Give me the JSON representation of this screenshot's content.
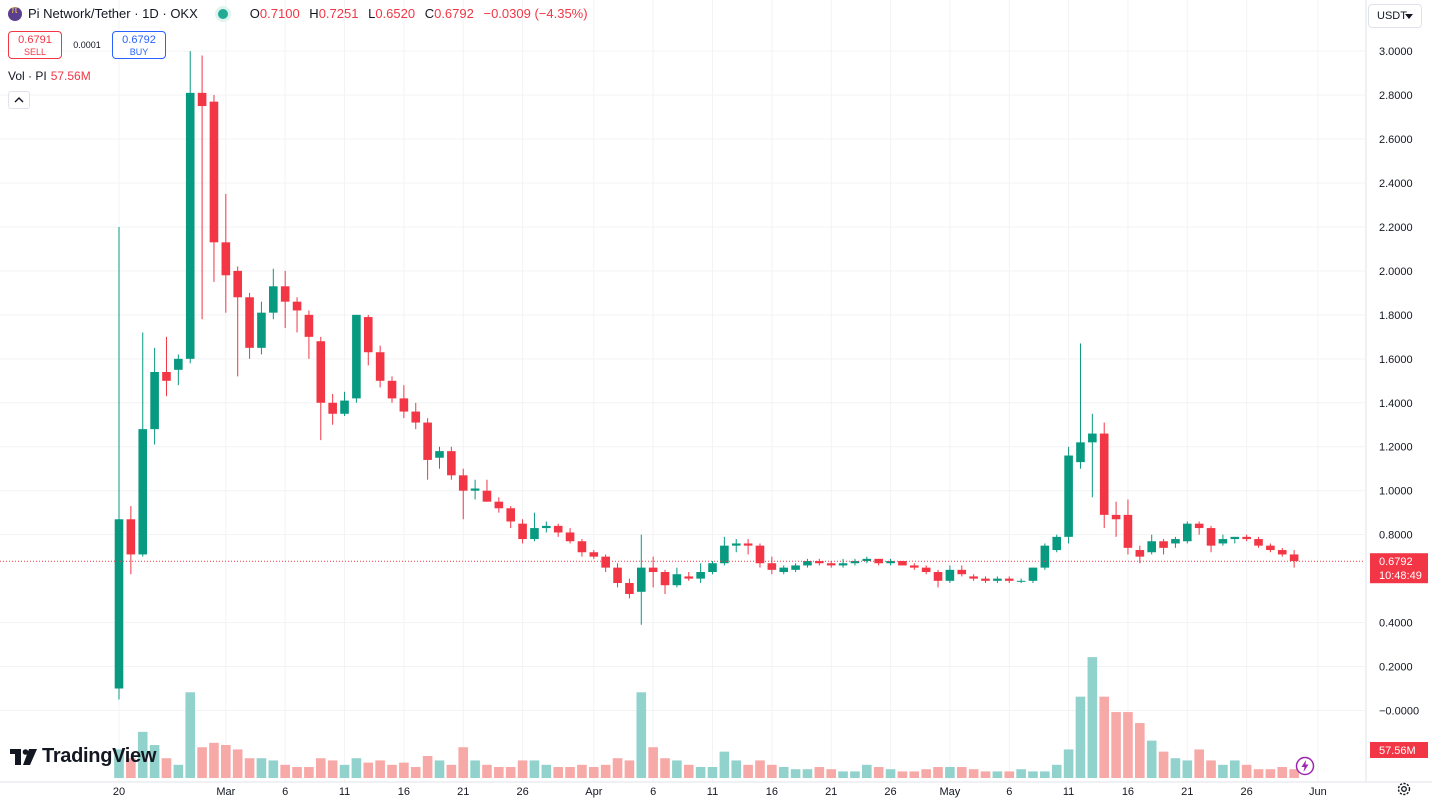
{
  "header": {
    "title": "Pi Network/Tether · 1D · OKX",
    "ohlc": {
      "o_label": "O",
      "o": "0.7100",
      "h_label": "H",
      "h": "0.7251",
      "l_label": "L",
      "l": "0.6520",
      "c_label": "C",
      "c": "0.6792",
      "change": "−0.0309 (−4.35%)"
    },
    "sell": {
      "price": "0.6791",
      "label": "SELL"
    },
    "spread": "0.0001",
    "buy": {
      "price": "0.6792",
      "label": "BUY"
    },
    "volume": {
      "label": "Vol · PI",
      "value": "57.56M"
    },
    "currency": "USDT",
    "brand": "TradingView"
  },
  "colors": {
    "up": "#089981",
    "down": "#f23645",
    "vol_up": "#92d2cc",
    "vol_down": "#f7a9a7",
    "grid": "#f2f3f5"
  },
  "icons": [
    "pi-network-logo-icon",
    "market-status-icon",
    "collapse-chevron-icon",
    "dropdown-icon",
    "tradingview-logo-icon",
    "lightning-icon",
    "settings-gear-icon"
  ],
  "chart_data": {
    "type": "candlestick",
    "title": "Pi Network/Tether · 1D · OKX",
    "y_ticks": [
      "3.0000",
      "2.8000",
      "2.6000",
      "2.4000",
      "2.2000",
      "2.0000",
      "1.8000",
      "1.6000",
      "1.4000",
      "1.2000",
      "1.0000",
      "0.8000",
      "0.6792",
      "0.4000",
      "0.2000",
      "−0.0000"
    ],
    "x_ticks": [
      {
        "label": "20",
        "date": "2025-02-20"
      },
      {
        "label": "Mar",
        "date": "2025-03-01"
      },
      {
        "label": "6",
        "date": "2025-03-06"
      },
      {
        "label": "11",
        "date": "2025-03-11"
      },
      {
        "label": "16",
        "date": "2025-03-16"
      },
      {
        "label": "21",
        "date": "2025-03-21"
      },
      {
        "label": "26",
        "date": "2025-03-26"
      },
      {
        "label": "Apr",
        "date": "2025-04-01"
      },
      {
        "label": "6",
        "date": "2025-04-06"
      },
      {
        "label": "11",
        "date": "2025-04-11"
      },
      {
        "label": "16",
        "date": "2025-04-16"
      },
      {
        "label": "21",
        "date": "2025-04-21"
      },
      {
        "label": "26",
        "date": "2025-04-26"
      },
      {
        "label": "May",
        "date": "2025-05-01"
      },
      {
        "label": "6",
        "date": "2025-05-06"
      },
      {
        "label": "11",
        "date": "2025-05-11"
      },
      {
        "label": "16",
        "date": "2025-05-16"
      },
      {
        "label": "21",
        "date": "2025-05-21"
      },
      {
        "label": "26",
        "date": "2025-05-26"
      },
      {
        "label": "Jun",
        "date": "2025-06-01"
      }
    ],
    "last_price": {
      "value": 0.6792,
      "label": "0.6792",
      "countdown": "10:48:49"
    },
    "last_volume_label": "57.56M",
    "start_date": "2025-02-20",
    "candles": [
      [
        0.1,
        2.2,
        0.05,
        0.87
      ],
      [
        0.87,
        0.93,
        0.62,
        0.71
      ],
      [
        0.71,
        1.72,
        0.7,
        1.28
      ],
      [
        1.28,
        1.65,
        1.21,
        1.54
      ],
      [
        1.54,
        1.7,
        1.43,
        1.5
      ],
      [
        1.55,
        1.62,
        1.48,
        1.6
      ],
      [
        1.6,
        3.0,
        1.58,
        2.81
      ],
      [
        2.81,
        2.98,
        1.78,
        2.75
      ],
      [
        2.77,
        2.8,
        1.95,
        2.13
      ],
      [
        2.13,
        2.35,
        1.81,
        1.98
      ],
      [
        2.0,
        2.02,
        1.52,
        1.88
      ],
      [
        1.88,
        1.9,
        1.6,
        1.65
      ],
      [
        1.65,
        1.86,
        1.62,
        1.81
      ],
      [
        1.81,
        2.01,
        1.78,
        1.93
      ],
      [
        1.93,
        2.0,
        1.74,
        1.86
      ],
      [
        1.86,
        1.88,
        1.72,
        1.82
      ],
      [
        1.8,
        1.82,
        1.6,
        1.7
      ],
      [
        1.68,
        1.7,
        1.23,
        1.4
      ],
      [
        1.4,
        1.44,
        1.3,
        1.35
      ],
      [
        1.35,
        1.45,
        1.34,
        1.41
      ],
      [
        1.42,
        1.8,
        1.4,
        1.8
      ],
      [
        1.79,
        1.8,
        1.57,
        1.63
      ],
      [
        1.63,
        1.66,
        1.47,
        1.5
      ],
      [
        1.5,
        1.52,
        1.4,
        1.42
      ],
      [
        1.42,
        1.48,
        1.33,
        1.36
      ],
      [
        1.36,
        1.4,
        1.28,
        1.31
      ],
      [
        1.31,
        1.33,
        1.05,
        1.14
      ],
      [
        1.15,
        1.2,
        1.1,
        1.18
      ],
      [
        1.18,
        1.2,
        1.05,
        1.07
      ],
      [
        1.07,
        1.1,
        0.87,
        1.0
      ],
      [
        1.0,
        1.05,
        0.96,
        1.01
      ],
      [
        1.0,
        1.05,
        0.95,
        0.95
      ],
      [
        0.95,
        0.97,
        0.9,
        0.92
      ],
      [
        0.92,
        0.93,
        0.83,
        0.86
      ],
      [
        0.85,
        0.87,
        0.76,
        0.78
      ],
      [
        0.78,
        0.9,
        0.77,
        0.83
      ],
      [
        0.83,
        0.86,
        0.81,
        0.84
      ],
      [
        0.84,
        0.85,
        0.79,
        0.81
      ],
      [
        0.81,
        0.83,
        0.76,
        0.77
      ],
      [
        0.77,
        0.78,
        0.7,
        0.72
      ],
      [
        0.72,
        0.73,
        0.69,
        0.7
      ],
      [
        0.7,
        0.71,
        0.63,
        0.65
      ],
      [
        0.65,
        0.67,
        0.56,
        0.58
      ],
      [
        0.58,
        0.6,
        0.51,
        0.53
      ],
      [
        0.54,
        0.8,
        0.39,
        0.65
      ],
      [
        0.65,
        0.7,
        0.56,
        0.63
      ],
      [
        0.63,
        0.64,
        0.53,
        0.57
      ],
      [
        0.57,
        0.65,
        0.56,
        0.62
      ],
      [
        0.61,
        0.63,
        0.59,
        0.6
      ],
      [
        0.6,
        0.67,
        0.58,
        0.63
      ],
      [
        0.63,
        0.68,
        0.62,
        0.67
      ],
      [
        0.67,
        0.79,
        0.66,
        0.75
      ],
      [
        0.75,
        0.78,
        0.72,
        0.76
      ],
      [
        0.76,
        0.78,
        0.71,
        0.75
      ],
      [
        0.75,
        0.76,
        0.65,
        0.67
      ],
      [
        0.67,
        0.7,
        0.62,
        0.64
      ],
      [
        0.63,
        0.66,
        0.62,
        0.65
      ],
      [
        0.64,
        0.67,
        0.63,
        0.66
      ],
      [
        0.66,
        0.69,
        0.65,
        0.68
      ],
      [
        0.68,
        0.69,
        0.66,
        0.67
      ],
      [
        0.67,
        0.68,
        0.65,
        0.66
      ],
      [
        0.66,
        0.69,
        0.65,
        0.67
      ],
      [
        0.67,
        0.69,
        0.66,
        0.68
      ],
      [
        0.68,
        0.7,
        0.67,
        0.69
      ],
      [
        0.69,
        0.69,
        0.66,
        0.67
      ],
      [
        0.67,
        0.69,
        0.66,
        0.68
      ],
      [
        0.68,
        0.68,
        0.66,
        0.66
      ],
      [
        0.66,
        0.67,
        0.64,
        0.65
      ],
      [
        0.65,
        0.66,
        0.62,
        0.63
      ],
      [
        0.63,
        0.64,
        0.56,
        0.59
      ],
      [
        0.59,
        0.66,
        0.58,
        0.64
      ],
      [
        0.64,
        0.66,
        0.61,
        0.62
      ],
      [
        0.61,
        0.62,
        0.59,
        0.6
      ],
      [
        0.6,
        0.61,
        0.58,
        0.59
      ],
      [
        0.59,
        0.61,
        0.58,
        0.6
      ],
      [
        0.6,
        0.61,
        0.58,
        0.59
      ],
      [
        0.59,
        0.6,
        0.58,
        0.59
      ],
      [
        0.59,
        0.65,
        0.58,
        0.65
      ],
      [
        0.65,
        0.76,
        0.64,
        0.75
      ],
      [
        0.73,
        0.8,
        0.72,
        0.79
      ],
      [
        0.79,
        1.2,
        0.76,
        1.16
      ],
      [
        1.13,
        1.67,
        1.1,
        1.22
      ],
      [
        1.22,
        1.35,
        0.97,
        1.26
      ],
      [
        1.26,
        1.31,
        0.83,
        0.89
      ],
      [
        0.89,
        0.95,
        0.79,
        0.87
      ],
      [
        0.89,
        0.96,
        0.71,
        0.74
      ],
      [
        0.73,
        0.75,
        0.67,
        0.7
      ],
      [
        0.72,
        0.8,
        0.71,
        0.77
      ],
      [
        0.77,
        0.78,
        0.71,
        0.74
      ],
      [
        0.76,
        0.79,
        0.74,
        0.78
      ],
      [
        0.77,
        0.86,
        0.76,
        0.85
      ],
      [
        0.85,
        0.86,
        0.8,
        0.83
      ],
      [
        0.83,
        0.84,
        0.72,
        0.75
      ],
      [
        0.76,
        0.8,
        0.75,
        0.78
      ],
      [
        0.78,
        0.79,
        0.76,
        0.79
      ],
      [
        0.79,
        0.8,
        0.77,
        0.78
      ],
      [
        0.78,
        0.79,
        0.74,
        0.75
      ],
      [
        0.75,
        0.76,
        0.72,
        0.73
      ],
      [
        0.73,
        0.74,
        0.7,
        0.71
      ],
      [
        0.71,
        0.73,
        0.65,
        0.68
      ]
    ],
    "volumes_in_axis_units": [
      0.13,
      0.09,
      0.21,
      0.15,
      0.09,
      0.06,
      0.39,
      0.14,
      0.16,
      0.15,
      0.13,
      0.09,
      0.09,
      0.08,
      0.06,
      0.05,
      0.05,
      0.09,
      0.08,
      0.06,
      0.09,
      0.07,
      0.08,
      0.06,
      0.07,
      0.05,
      0.1,
      0.08,
      0.06,
      0.14,
      0.08,
      0.06,
      0.05,
      0.05,
      0.08,
      0.08,
      0.06,
      0.05,
      0.05,
      0.06,
      0.05,
      0.06,
      0.09,
      0.08,
      0.39,
      0.14,
      0.09,
      0.08,
      0.06,
      0.05,
      0.05,
      0.12,
      0.08,
      0.06,
      0.08,
      0.06,
      0.05,
      0.04,
      0.04,
      0.05,
      0.04,
      0.03,
      0.03,
      0.06,
      0.05,
      0.04,
      0.03,
      0.03,
      0.04,
      0.05,
      0.05,
      0.05,
      0.04,
      0.03,
      0.03,
      0.03,
      0.04,
      0.03,
      0.03,
      0.06,
      0.13,
      0.37,
      0.55,
      0.37,
      0.3,
      0.3,
      0.25,
      0.17,
      0.12,
      0.09,
      0.08,
      0.13,
      0.08,
      0.06,
      0.08,
      0.06,
      0.04,
      0.04,
      0.05,
      0.04
    ]
  }
}
